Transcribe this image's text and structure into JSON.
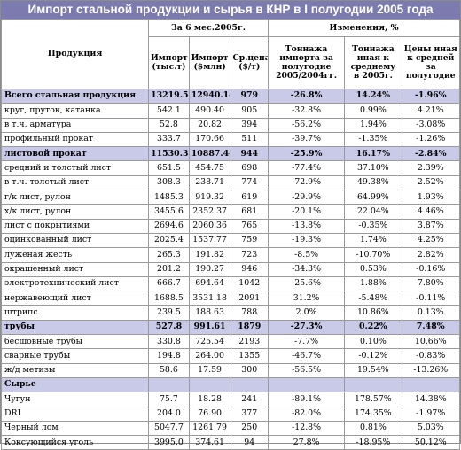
{
  "title": "Импорт стальной продукции и сырья в КНР в I полугодии 2005 года",
  "header": {
    "product": "Продукция",
    "period": "За 6 мес.2005г.",
    "change": "Изменения, %",
    "import_t": "Импорт (тыс.т)",
    "import_usd": "Импорт ($млн)",
    "avg_price": "Ср.цена ($/т)",
    "tonnage_change": "Тоннажа импорта за полугодие 2005/2004гг.",
    "tonnage_vs_avg": "Тоннажа иная к среднему в 2005г.",
    "price_vs_avg": "Цены иная к средней за полугодие"
  },
  "rows": [
    {
      "name": "Всего стальная продукция",
      "a": "13219.5",
      "b": "12940.14",
      "c": "979",
      "d": "-26.8%",
      "e": "14.24%",
      "f": "-1.96%",
      "hl": true
    },
    {
      "name": "круг, пруток, катанка",
      "a": "542.1",
      "b": "490.40",
      "c": "905",
      "d": "-32.8%",
      "e": "0.99%",
      "f": "4.21%"
    },
    {
      "name": "в т.ч. арматура",
      "a": "52.8",
      "b": "20.82",
      "c": "394",
      "d": "-56.2%",
      "e": "1.94%",
      "f": "-3.08%"
    },
    {
      "name": "профильный прокат",
      "a": "333.7",
      "b": "170.66",
      "c": "511",
      "d": "-39.7%",
      "e": "-1.35%",
      "f": "-1.26%"
    },
    {
      "name": "листовой прокат",
      "a": "11530.3",
      "b": "10887.44",
      "c": "944",
      "d": "-25.9%",
      "e": "16.17%",
      "f": "-2.84%",
      "hl": true
    },
    {
      "name": "средний и толстый лист",
      "a": "651.5",
      "b": "454.75",
      "c": "698",
      "d": "-77.4%",
      "e": "37.10%",
      "f": "2.39%"
    },
    {
      "name": "в т.ч. толстый лист",
      "a": "308.3",
      "b": "238.71",
      "c": "774",
      "d": "-72.9%",
      "e": "49.38%",
      "f": "2.52%"
    },
    {
      "name": "г/к лист, рулон",
      "a": "1485.3",
      "b": "919.32",
      "c": "619",
      "d": "-29.9%",
      "e": "64.99%",
      "f": "1.93%"
    },
    {
      "name": "х/к лист, рулон",
      "a": "3455.6",
      "b": "2352.37",
      "c": "681",
      "d": "-20.1%",
      "e": "22.04%",
      "f": "4.46%"
    },
    {
      "name": "лист с покрытиями",
      "a": "2694.6",
      "b": "2060.36",
      "c": "765",
      "d": "-13.8%",
      "e": "-0.35%",
      "f": "3.87%"
    },
    {
      "name": "оцинкованный лист",
      "a": "2025.4",
      "b": "1537.77",
      "c": "759",
      "d": "-19.3%",
      "e": "1.74%",
      "f": "4.25%"
    },
    {
      "name": "луженая жесть",
      "a": "265.3",
      "b": "191.82",
      "c": "723",
      "d": "-8.5%",
      "e": "-10.70%",
      "f": "2.82%"
    },
    {
      "name": "окрашенный лист",
      "a": "201.2",
      "b": "190.27",
      "c": "946",
      "d": "-34.3%",
      "e": "0.53%",
      "f": "-0.16%"
    },
    {
      "name": "электротехнический лист",
      "a": "666.7",
      "b": "694.64",
      "c": "1042",
      "d": "-25.6%",
      "e": "1.88%",
      "f": "7.80%"
    },
    {
      "name": "нержавеющий лист",
      "a": "1688.5",
      "b": "3531.18",
      "c": "2091",
      "d": "31.2%",
      "e": "-5.48%",
      "f": "-0.11%"
    },
    {
      "name": "штрипс",
      "a": "239.5",
      "b": "188.63",
      "c": "788",
      "d": "2.0%",
      "e": "10.86%",
      "f": "0.13%"
    },
    {
      "name": "трубы",
      "a": "527.8",
      "b": "991.61",
      "c": "1879",
      "d": "-27.3%",
      "e": "0.22%",
      "f": "7.48%",
      "hl": true
    },
    {
      "name": "бесшовные трубы",
      "a": "330.8",
      "b": "725.54",
      "c": "2193",
      "d": "-7.7%",
      "e": "0.10%",
      "f": "10.66%"
    },
    {
      "name": "сварные трубы",
      "a": "194.8",
      "b": "264.00",
      "c": "1355",
      "d": "-46.7%",
      "e": "-0.12%",
      "f": "-0.83%"
    },
    {
      "name": "ж/д метизы",
      "a": "58.6",
      "b": "17.59",
      "c": "300",
      "d": "-56.5%",
      "e": "19.54%",
      "f": "-13.26%"
    },
    {
      "name": "Сырье",
      "a": "",
      "b": "",
      "c": "",
      "d": "",
      "e": "",
      "f": "",
      "sect": true
    },
    {
      "name": "Чугун",
      "a": "75.7",
      "b": "18.28",
      "c": "241",
      "d": "-89.1%",
      "e": "178.57%",
      "f": "14.38%"
    },
    {
      "name": "DRI",
      "a": "204.0",
      "b": "76.90",
      "c": "377",
      "d": "-82.0%",
      "e": "174.35%",
      "f": "-1.97%"
    },
    {
      "name": "Черный лом",
      "a": "5047.7",
      "b": "1261.79",
      "c": "250",
      "d": "-12.8%",
      "e": "0.81%",
      "f": "5.03%"
    },
    {
      "name": "Коксующийся уголь",
      "a": "3995.0",
      "b": "374.61",
      "c": "94",
      "d": "27.8%",
      "e": "-18.95%",
      "f": "50.12%"
    }
  ]
}
